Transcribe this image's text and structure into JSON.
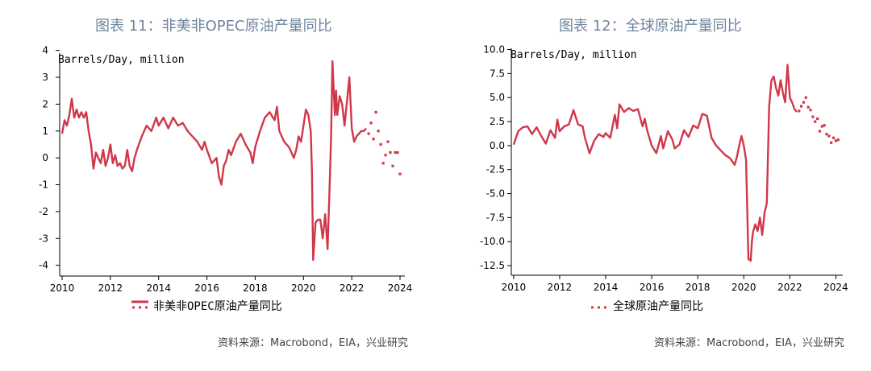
{
  "colors": {
    "series": "#d0384a",
    "title": "#6f849d"
  },
  "chart_data": [
    {
      "type": "line",
      "title": "图表 11：非美非OPEC原油产量同比",
      "unit_label": "Barrels/Day, million",
      "legend": "非美非OPEC原油产量同比",
      "source": "资料来源：Macrobond，EIA，兴业研究",
      "xlim": [
        2009.9,
        2024.2
      ],
      "ylim": [
        -4.4,
        4.2
      ],
      "x_ticks": [
        2010,
        2012,
        2014,
        2016,
        2018,
        2020,
        2022,
        2024
      ],
      "y_ticks": [
        4,
        3,
        2,
        1,
        0,
        -1,
        -2,
        -3,
        -4
      ],
      "y_tick_labels": [
        "4",
        "3",
        "2",
        "1",
        "0",
        "-1",
        "-2",
        "-3",
        "-4"
      ],
      "series": [
        {
          "name": "actual",
          "style": "solid",
          "x": [
            2010.0,
            2010.1,
            2010.2,
            2010.3,
            2010.4,
            2010.5,
            2010.6,
            2010.7,
            2010.8,
            2010.9,
            2011.0,
            2011.1,
            2011.2,
            2011.3,
            2011.4,
            2011.5,
            2011.6,
            2011.7,
            2011.8,
            2011.9,
            2012.0,
            2012.1,
            2012.2,
            2012.3,
            2012.4,
            2012.5,
            2012.6,
            2012.7,
            2012.8,
            2012.9,
            2013.0,
            2013.1,
            2013.3,
            2013.5,
            2013.7,
            2013.9,
            2014.0,
            2014.2,
            2014.4,
            2014.6,
            2014.8,
            2015.0,
            2015.2,
            2015.4,
            2015.6,
            2015.8,
            2015.9,
            2016.0,
            2016.2,
            2016.4,
            2016.5,
            2016.6,
            2016.7,
            2016.8,
            2016.9,
            2017.0,
            2017.2,
            2017.4,
            2017.6,
            2017.8,
            2017.9,
            2018.0,
            2018.2,
            2018.4,
            2018.6,
            2018.8,
            2018.9,
            2019.0,
            2019.2,
            2019.4,
            2019.6,
            2019.7,
            2019.8,
            2019.9,
            2020.0,
            2020.1,
            2020.2,
            2020.3,
            2020.35,
            2020.4,
            2020.5,
            2020.6,
            2020.7,
            2020.8,
            2020.9,
            2021.0,
            2021.1,
            2021.15,
            2021.2,
            2021.3,
            2021.35,
            2021.4,
            2021.5,
            2021.6,
            2021.7,
            2021.8,
            2021.9,
            2022.0,
            2022.1,
            2022.2,
            2022.3,
            2022.4,
            2022.5,
            2022.6
          ],
          "y": [
            0.9,
            1.4,
            1.2,
            1.6,
            2.2,
            1.5,
            1.8,
            1.5,
            1.7,
            1.5,
            1.7,
            1.0,
            0.5,
            -0.4,
            0.2,
            0.0,
            -0.2,
            0.3,
            -0.3,
            0.0,
            0.5,
            -0.2,
            0.1,
            -0.3,
            -0.2,
            -0.4,
            -0.3,
            0.3,
            -0.3,
            -0.5,
            0.0,
            0.3,
            0.8,
            1.2,
            1.0,
            1.5,
            1.2,
            1.5,
            1.1,
            1.5,
            1.2,
            1.3,
            1.0,
            0.8,
            0.6,
            0.3,
            0.6,
            0.3,
            -0.2,
            0.0,
            -0.7,
            -1.0,
            -0.3,
            -0.1,
            0.3,
            0.1,
            0.6,
            0.9,
            0.5,
            0.2,
            -0.2,
            0.4,
            1.0,
            1.5,
            1.7,
            1.4,
            1.9,
            1.0,
            0.6,
            0.4,
            0.0,
            0.3,
            0.8,
            0.6,
            1.2,
            1.8,
            1.6,
            1.0,
            -0.5,
            -3.8,
            -2.4,
            -2.3,
            -2.3,
            -3.0,
            -2.1,
            -3.4,
            -0.6,
            1.0,
            3.6,
            1.6,
            2.5,
            1.6,
            2.3,
            2.0,
            1.2,
            2.1,
            3.0,
            1.1,
            0.6,
            0.8,
            0.9,
            1.0,
            1.0,
            1.1
          ]
        },
        {
          "name": "forecast",
          "style": "dotted",
          "x": [
            2022.7,
            2022.8,
            2022.9,
            2023.0,
            2023.1,
            2023.2,
            2023.3,
            2023.4,
            2023.5,
            2023.6,
            2023.7,
            2023.8,
            2023.9,
            2024.0
          ],
          "y": [
            0.9,
            1.3,
            0.7,
            1.7,
            1.0,
            0.5,
            -0.2,
            0.1,
            0.6,
            0.2,
            -0.3,
            0.2,
            0.2,
            -0.6
          ]
        }
      ]
    },
    {
      "type": "line",
      "title": "图表 12：全球原油产量同比",
      "unit_label": "Barrels/Day, million",
      "legend": "全球原油产量同比",
      "source": "资料来源：Macrobond，EIA，兴业研究",
      "xlim": [
        2009.9,
        2024.3
      ],
      "ylim": [
        -13.5,
        10.8
      ],
      "x_ticks": [
        2010,
        2012,
        2014,
        2016,
        2018,
        2020,
        2022,
        2024
      ],
      "y_ticks": [
        10,
        7.5,
        5,
        2.5,
        0,
        -2.5,
        -5,
        -7.5,
        -10,
        -12.5
      ],
      "y_tick_labels": [
        "10.0",
        "7.5",
        "5.0",
        "2.5",
        "0.0",
        "-2.5",
        "-5.0",
        "-7.5",
        "-10.0",
        "-12.5"
      ],
      "series": [
        {
          "name": "actual",
          "style": "solid",
          "x": [
            2010.0,
            2010.2,
            2010.4,
            2010.6,
            2010.8,
            2011.0,
            2011.2,
            2011.4,
            2011.6,
            2011.8,
            2011.9,
            2012.0,
            2012.2,
            2012.4,
            2012.6,
            2012.8,
            2013.0,
            2013.1,
            2013.3,
            2013.5,
            2013.7,
            2013.9,
            2014.0,
            2014.2,
            2014.4,
            2014.5,
            2014.6,
            2014.8,
            2015.0,
            2015.2,
            2015.4,
            2015.6,
            2015.7,
            2015.8,
            2016.0,
            2016.2,
            2016.4,
            2016.5,
            2016.7,
            2016.9,
            2017.0,
            2017.2,
            2017.4,
            2017.6,
            2017.8,
            2018.0,
            2018.2,
            2018.4,
            2018.6,
            2018.8,
            2019.0,
            2019.2,
            2019.4,
            2019.6,
            2019.7,
            2019.8,
            2019.9,
            2020.0,
            2020.1,
            2020.2,
            2020.3,
            2020.35,
            2020.4,
            2020.5,
            2020.6,
            2020.7,
            2020.8,
            2020.9,
            2021.0,
            2021.1,
            2021.2,
            2021.3,
            2021.4,
            2021.5,
            2021.6,
            2021.7,
            2021.8,
            2021.9,
            2022.0,
            2022.1,
            2022.2,
            2022.3
          ],
          "y": [
            0.1,
            1.5,
            1.9,
            2.0,
            1.2,
            1.9,
            1.0,
            0.2,
            1.6,
            0.8,
            2.7,
            1.5,
            2.0,
            2.2,
            3.7,
            2.2,
            2.0,
            0.8,
            -0.8,
            0.5,
            1.2,
            0.9,
            1.3,
            0.8,
            3.2,
            1.8,
            4.3,
            3.5,
            3.9,
            3.6,
            3.8,
            2.0,
            2.8,
            1.6,
            0.0,
            -0.8,
            1.0,
            -0.3,
            1.5,
            0.6,
            -0.3,
            0.1,
            1.6,
            0.9,
            2.1,
            1.8,
            3.3,
            3.1,
            0.8,
            0.0,
            -0.5,
            -1.0,
            -1.3,
            -2.0,
            -1.2,
            0.0,
            1.0,
            0.0,
            -1.5,
            -11.8,
            -12.0,
            -10.0,
            -9.0,
            -8.2,
            -8.9,
            -7.5,
            -9.3,
            -7.0,
            -6.0,
            4.0,
            6.8,
            7.2,
            6.0,
            5.2,
            6.8,
            5.5,
            4.5,
            8.4,
            5.0,
            4.5,
            3.8,
            3.5
          ]
        },
        {
          "name": "forecast",
          "style": "dotted",
          "x": [
            2022.4,
            2022.5,
            2022.6,
            2022.7,
            2022.8,
            2022.9,
            2023.0,
            2023.1,
            2023.2,
            2023.3,
            2023.4,
            2023.5,
            2023.6,
            2023.7,
            2023.8,
            2023.9,
            2024.0,
            2024.1
          ],
          "y": [
            3.6,
            4.1,
            4.5,
            5.0,
            4.0,
            3.7,
            3.0,
            2.5,
            2.8,
            1.5,
            2.0,
            2.1,
            1.2,
            1.0,
            0.3,
            0.8,
            0.5,
            0.6
          ]
        }
      ]
    }
  ]
}
